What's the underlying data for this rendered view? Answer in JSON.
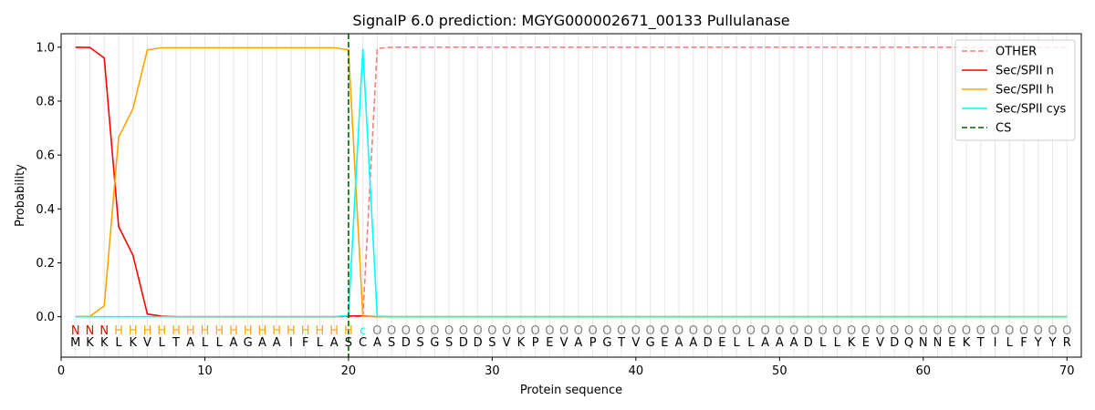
{
  "chart_data": {
    "type": "line",
    "title": "SignalP 6.0 prediction: MGYG000002671_00133 Pullulanase",
    "xlabel": "Protein sequence",
    "ylabel": "Probability",
    "xlim": [
      0,
      71
    ],
    "ylim": [
      -0.15,
      1.05
    ],
    "xticks": [
      0,
      10,
      20,
      30,
      40,
      50,
      60,
      70
    ],
    "yticks": [
      0.0,
      0.2,
      0.4,
      0.6,
      0.8,
      1.0
    ],
    "ytick_labels": [
      "0.0",
      "0.2",
      "0.4",
      "0.6",
      "0.8",
      "1.0"
    ],
    "grid": "vertical lines at each residue",
    "legend_position": "upper right",
    "sequence": [
      "M",
      "K",
      "K",
      "L",
      "K",
      "V",
      "L",
      "T",
      "A",
      "L",
      "L",
      "A",
      "G",
      "A",
      "A",
      "I",
      "F",
      "L",
      "A",
      "S",
      "C",
      "A",
      "S",
      "D",
      "S",
      "G",
      "S",
      "D",
      "D",
      "S",
      "V",
      "K",
      "P",
      "E",
      "V",
      "A",
      "P",
      "G",
      "T",
      "V",
      "G",
      "E",
      "A",
      "A",
      "D",
      "E",
      "L",
      "L",
      "A",
      "A",
      "A",
      "D",
      "L",
      "L",
      "K",
      "E",
      "V",
      "D",
      "Q",
      "N",
      "N",
      "E",
      "K",
      "T",
      "I",
      "L",
      "F",
      "Y",
      "Y",
      "R"
    ],
    "labels": [
      "N",
      "N",
      "N",
      "H",
      "H",
      "H",
      "H",
      "H",
      "H",
      "H",
      "H",
      "H",
      "H",
      "H",
      "H",
      "H",
      "H",
      "H",
      "H",
      "H",
      "c",
      "O",
      "O",
      "O",
      "O",
      "O",
      "O",
      "O",
      "O",
      "O",
      "O",
      "O",
      "O",
      "O",
      "O",
      "O",
      "O",
      "O",
      "O",
      "O",
      "O",
      "O",
      "O",
      "O",
      "O",
      "O",
      "O",
      "O",
      "O",
      "O",
      "O",
      "O",
      "O",
      "O",
      "O",
      "O",
      "O",
      "O",
      "O",
      "O",
      "O",
      "O",
      "O",
      "O",
      "O",
      "O",
      "O",
      "O",
      "O",
      "O"
    ],
    "label_colors": {
      "N": "#ff0000",
      "H": "#ffa500",
      "c": "#00ffff",
      "O": "#808080"
    },
    "series": [
      {
        "name": "OTHER",
        "color": "#f08080",
        "dash": "dashed",
        "x_start": 1,
        "values": [
          0,
          0,
          0,
          0,
          0,
          0,
          0,
          0,
          0,
          0,
          0,
          0,
          0,
          0,
          0,
          0,
          0,
          0,
          0,
          0,
          0,
          0.995,
          1,
          1,
          1,
          1,
          1,
          1,
          1,
          1,
          1,
          1,
          1,
          1,
          1,
          1,
          1,
          1,
          1,
          1,
          1,
          1,
          1,
          1,
          1,
          1,
          1,
          1,
          1,
          1,
          1,
          1,
          1,
          1,
          1,
          1,
          1,
          1,
          1,
          1,
          1,
          1,
          1,
          1,
          1,
          1,
          1,
          1,
          1,
          1
        ]
      },
      {
        "name": "Sec/SPII n",
        "color": "#ff0000",
        "dash": "solid",
        "x_start": 1,
        "values": [
          1.0,
          0.999,
          0.96,
          0.335,
          0.228,
          0.01,
          0.002,
          0,
          0,
          0,
          0,
          0,
          0,
          0,
          0,
          0,
          0,
          0,
          0,
          0.003,
          0.003,
          0,
          0,
          0,
          0,
          0,
          0,
          0,
          0,
          0,
          0,
          0,
          0,
          0,
          0,
          0,
          0,
          0,
          0,
          0,
          0,
          0,
          0,
          0,
          0,
          0,
          0,
          0,
          0,
          0,
          0,
          0,
          0,
          0,
          0,
          0,
          0,
          0,
          0,
          0,
          0,
          0,
          0,
          0,
          0,
          0,
          0,
          0,
          0,
          0
        ]
      },
      {
        "name": "Sec/SPII h",
        "color": "#ffa500",
        "dash": "solid",
        "x_start": 1,
        "values": [
          0,
          0.001,
          0.04,
          0.665,
          0.772,
          0.99,
          0.998,
          0.998,
          0.998,
          0.998,
          0.998,
          0.998,
          0.998,
          0.998,
          0.998,
          0.998,
          0.998,
          0.998,
          0.998,
          0.99,
          0.001,
          0,
          0,
          0,
          0,
          0,
          0,
          0,
          0,
          0,
          0,
          0,
          0,
          0,
          0,
          0,
          0,
          0,
          0,
          0,
          0,
          0,
          0,
          0,
          0,
          0,
          0,
          0,
          0,
          0,
          0,
          0,
          0,
          0,
          0,
          0,
          0,
          0,
          0,
          0,
          0,
          0,
          0,
          0,
          0,
          0,
          0,
          0,
          0,
          0
        ]
      },
      {
        "name": "Sec/SPII cys",
        "color": "#00ffff",
        "dash": "solid",
        "x_start": 1,
        "values": [
          0,
          0,
          0,
          0,
          0,
          0,
          0,
          0,
          0,
          0,
          0,
          0,
          0,
          0,
          0,
          0,
          0,
          0,
          0,
          0.005,
          0.992,
          0.002,
          0,
          0,
          0,
          0,
          0,
          0,
          0,
          0,
          0,
          0,
          0,
          0,
          0,
          0,
          0,
          0,
          0,
          0,
          0,
          0,
          0,
          0,
          0,
          0,
          0,
          0,
          0,
          0,
          0,
          0,
          0,
          0,
          0,
          0,
          0,
          0,
          0,
          0,
          0,
          0,
          0,
          0,
          0,
          0,
          0,
          0,
          0,
          0
        ]
      },
      {
        "name": "CS",
        "color": "#006400",
        "dash": "dashed",
        "type": "vline",
        "x": 20
      }
    ]
  }
}
